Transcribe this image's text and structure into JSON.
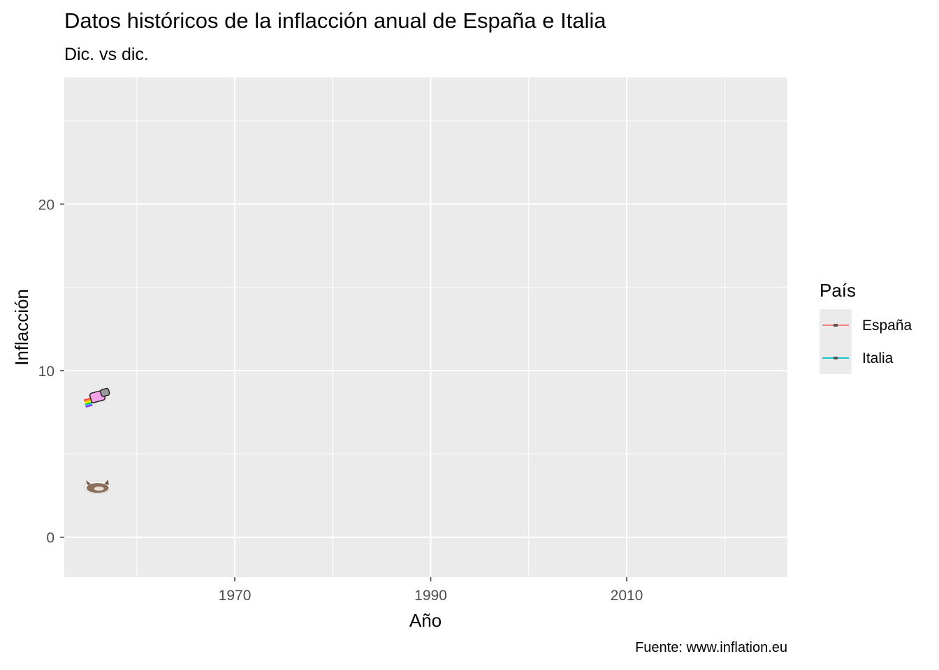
{
  "chart_data": {
    "type": "line",
    "title": "Datos históricos de la inflacción anual de España e Italia",
    "subtitle": "Dic. vs dic.",
    "caption": "Fuente: www.inflation.eu",
    "xlabel": "Año",
    "ylabel": "Inflacción",
    "xlim": [
      1952.6,
      2026.4
    ],
    "ylim": [
      -2.4,
      27.6
    ],
    "xticks": [
      1970,
      1990,
      2010
    ],
    "xticks_minor": [
      1960,
      1980,
      2000,
      2020
    ],
    "yticks": [
      0,
      10,
      20
    ],
    "yticks_minor": [
      5,
      15,
      25
    ],
    "grid": true,
    "background": "#ebebeb",
    "legend": {
      "title": "País",
      "position": "right",
      "entries": [
        "España",
        "Italia"
      ]
    },
    "series": [
      {
        "name": "España",
        "color": "#f8766d",
        "x": [
          1956
        ],
        "y": [
          8.4
        ],
        "marker": "rainbow-cat"
      },
      {
        "name": "Italia",
        "color": "#00bfc4",
        "x": [
          1956
        ],
        "y": [
          3.0
        ],
        "marker": "cat"
      }
    ]
  }
}
